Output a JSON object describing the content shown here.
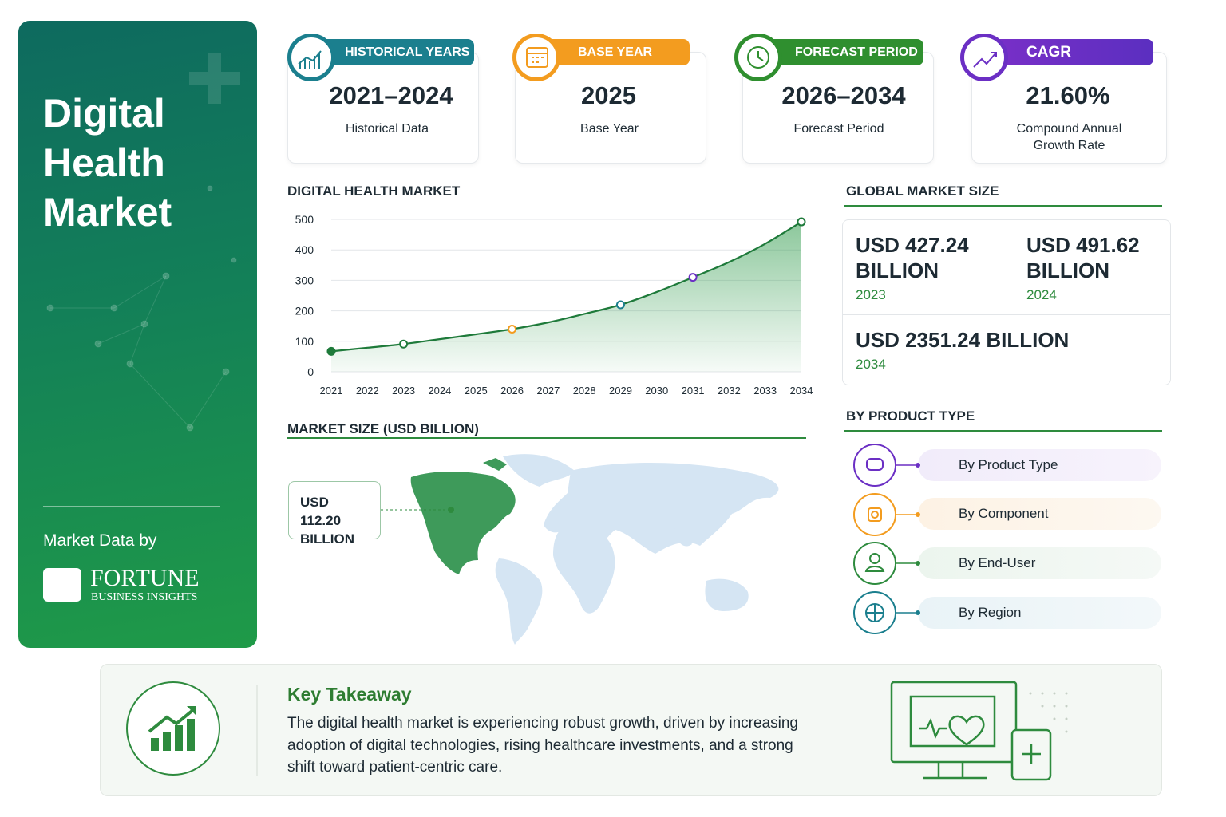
{
  "sidebar": {
    "title_lines": [
      "Digital",
      "Health",
      "Market"
    ],
    "credit": "Market Data by",
    "brand": "FORTUNE",
    "brand_sub": "BUSINESS INSIGHTS"
  },
  "stats": [
    {
      "tag": "HISTORICAL YEARS",
      "value": "2021–2024",
      "caption": "Historical Data"
    },
    {
      "tag": "BASE YEAR",
      "value": "2025",
      "caption": "Base Year"
    },
    {
      "tag": "FORECAST PERIOD",
      "value": "2026–2034",
      "caption": "Forecast Period"
    },
    {
      "tag": "CAGR",
      "value": "21.60%",
      "caption": "Compound Annual Growth Rate"
    }
  ],
  "line_chart": {
    "type": "line",
    "title": "DIGITAL HEALTH MARKET",
    "x": [
      2021,
      2022,
      2023,
      2024,
      2025,
      2026,
      2027,
      2028,
      2029,
      2030,
      2031,
      2032,
      2033,
      2034
    ],
    "values": [
      67,
      79,
      91,
      107,
      123,
      140,
      162,
      190,
      220,
      262,
      310,
      360,
      420,
      492
    ],
    "color": "#1e7a3a",
    "marker_colors": [
      "#1e7a3a",
      null,
      "#1e7a3a",
      null,
      null,
      "#f39c1f",
      null,
      null,
      "#1b7f8e",
      null,
      "#6b2fc4",
      null,
      null,
      "#1e7a3a"
    ],
    "xlim": [
      2021,
      2034
    ],
    "xticks": [
      2021,
      2022,
      2023,
      2024,
      2025,
      2026,
      2027,
      2028,
      2029,
      2030,
      2031,
      2032,
      2033,
      2034
    ],
    "ylim": [
      0,
      500
    ],
    "yticks": [
      0,
      100,
      200,
      300,
      400,
      500
    ],
    "grid": true
  },
  "map": {
    "title": "MARKET SIZE (USD BILLION)",
    "callout": "USD 112.20 BILLION"
  },
  "global_size": {
    "title": "GLOBAL MARKET SIZE",
    "cards": [
      {
        "value": "USD 427.24 BILLION",
        "year": "2023"
      },
      {
        "value": "USD 491.62 BILLION",
        "year": "2024"
      },
      {
        "value": "USD 2351.24 BILLION",
        "year": "2034"
      }
    ]
  },
  "product_type": {
    "title": "BY PRODUCT TYPE",
    "items": [
      "By Product Type",
      "By Component",
      "By End-User",
      "By Region"
    ]
  },
  "takeaway": {
    "title": "Key Takeaway",
    "text": "The digital health market is experiencing robust growth, driven by increasing adoption of digital technologies, rising healthcare investments, and a strong shift toward patient-centric care."
  }
}
